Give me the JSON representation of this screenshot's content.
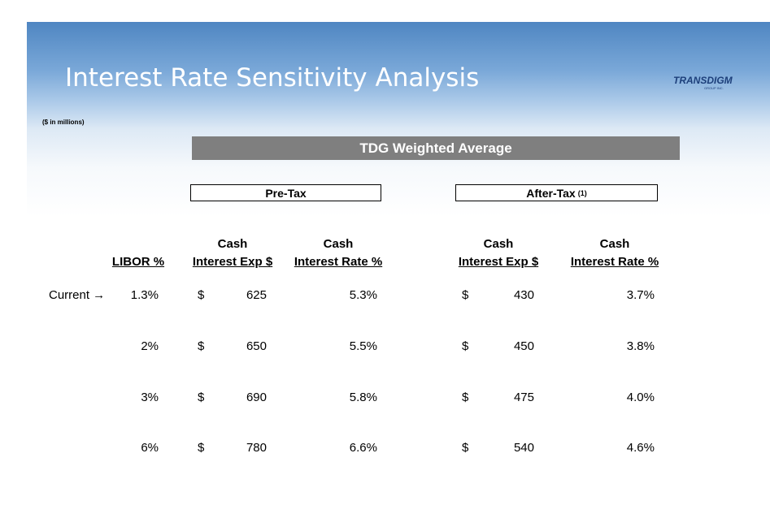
{
  "header": {
    "title": "Interest Rate Sensitivity Analysis",
    "logo": {
      "name": "TRANSDIGM",
      "sub": "GROUP INC."
    },
    "note": "($ in millions)"
  },
  "table": {
    "banner": "TDG Weighted Average",
    "groups": [
      {
        "label": "Pre-Tax"
      },
      {
        "label": "After-Tax",
        "footnote": "(1)"
      }
    ],
    "columns": [
      [
        "LIBOR %"
      ],
      [
        "Cash",
        "Interest Exp $"
      ],
      [
        "Cash",
        "Interest Rate %"
      ],
      [
        "Cash",
        "Interest Exp $"
      ],
      [
        "Cash",
        "Interest Rate %"
      ]
    ],
    "rows": [
      {
        "label": "Current →",
        "libor": "1.3%",
        "pre_currency": "$",
        "pre_exp": "625",
        "pre_rate": "5.3%",
        "after_currency": "$",
        "after_exp": "430",
        "after_rate": "3.7%"
      },
      {
        "libor": "2%",
        "pre_currency": "$",
        "pre_exp": "650",
        "pre_rate": "5.5%",
        "after_currency": "$",
        "after_exp": "450",
        "after_rate": "3.8%"
      },
      {
        "libor": "3%",
        "pre_currency": "$",
        "pre_exp": "690",
        "pre_rate": "5.8%",
        "after_currency": "$",
        "after_exp": "475",
        "after_rate": "4.0%"
      },
      {
        "libor": "6%",
        "pre_currency": "$",
        "pre_exp": "780",
        "pre_rate": "6.6%",
        "after_currency": "$",
        "after_exp": "540",
        "after_rate": "4.6%"
      }
    ]
  }
}
